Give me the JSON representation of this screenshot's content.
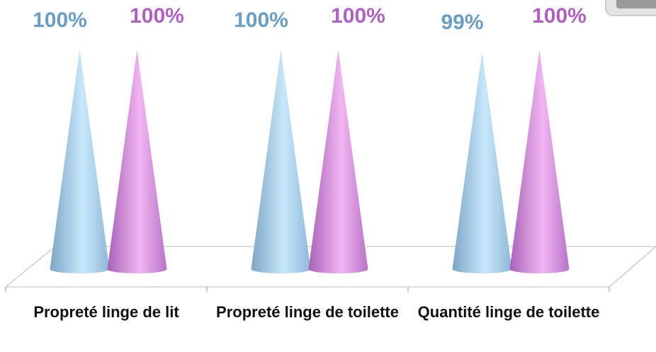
{
  "chart_data": {
    "type": "cone3d",
    "categories": [
      "Propreté linge de lit",
      "Propreté linge de toilette",
      "Quantité linge de toilette"
    ],
    "series": [
      {
        "color": "#6a9ec4",
        "values": [
          100,
          100,
          99
        ],
        "value_labels": [
          "100%",
          "100%",
          "99%"
        ]
      },
      {
        "color": "#b060c0",
        "values": [
          100,
          100,
          100
        ],
        "value_labels": [
          "100%",
          "100%",
          "100%"
        ]
      }
    ]
  }
}
